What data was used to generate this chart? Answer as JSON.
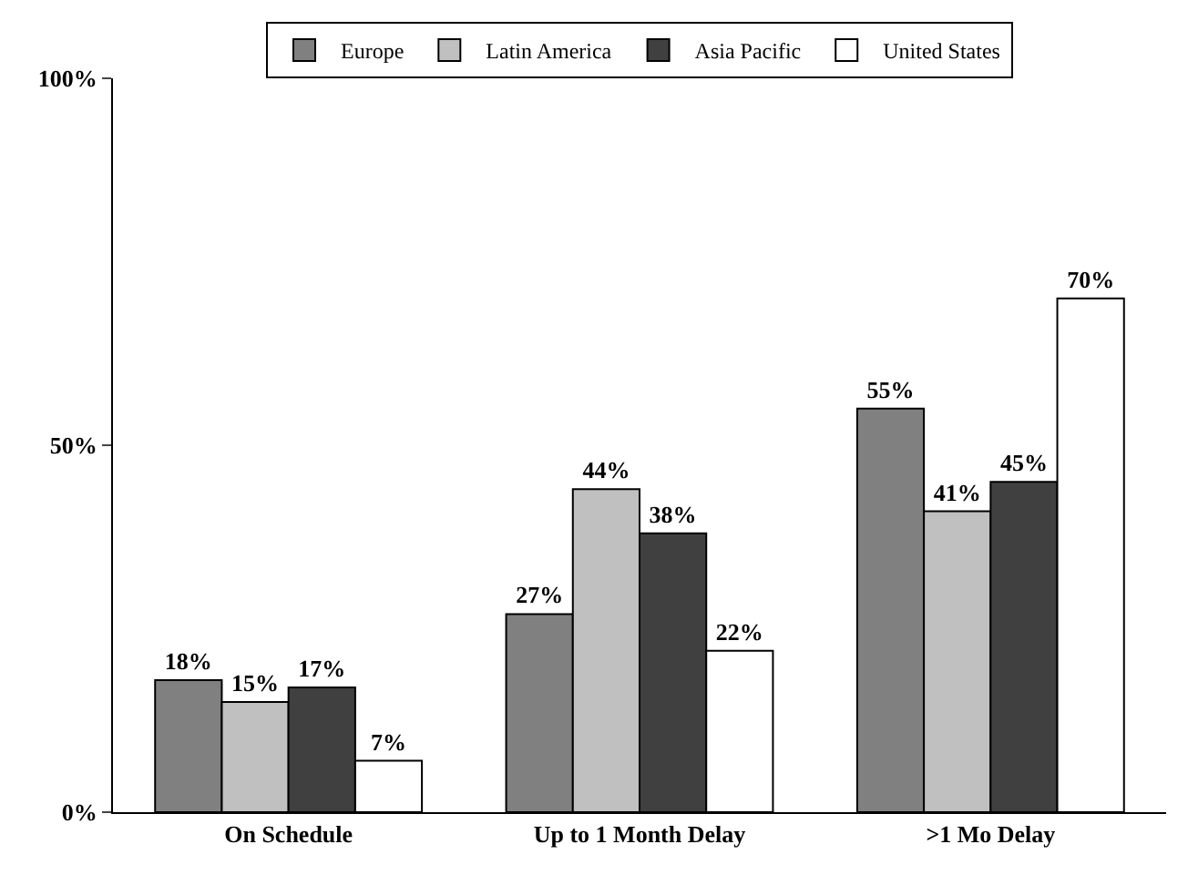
{
  "chart_data": {
    "type": "bar",
    "categories": [
      "On Schedule",
      "Up to 1 Month Delay",
      ">1 Mo Delay"
    ],
    "series": [
      {
        "name": "Europe",
        "color": "#808080",
        "values": [
          18,
          27,
          55
        ],
        "value_labels": [
          "18%",
          "27%",
          "55%"
        ]
      },
      {
        "name": "Latin America",
        "color": "#c0c0c0",
        "values": [
          15,
          44,
          41
        ],
        "value_labels": [
          "15%",
          "44%",
          "41%"
        ]
      },
      {
        "name": "Asia Pacific",
        "color": "#404040",
        "values": [
          17,
          38,
          45
        ],
        "value_labels": [
          "17%",
          "38%",
          "45%"
        ]
      },
      {
        "name": "United States",
        "color": "#ffffff",
        "values": [
          7,
          22,
          70
        ],
        "value_labels": [
          "7%",
          "22%",
          "70%"
        ]
      }
    ],
    "ylim": [
      0,
      100
    ],
    "yticks": [
      {
        "value": 0,
        "label": "0%"
      },
      {
        "value": 50,
        "label": "50%"
      },
      {
        "value": 100,
        "label": "100%"
      }
    ],
    "legend": "top"
  }
}
